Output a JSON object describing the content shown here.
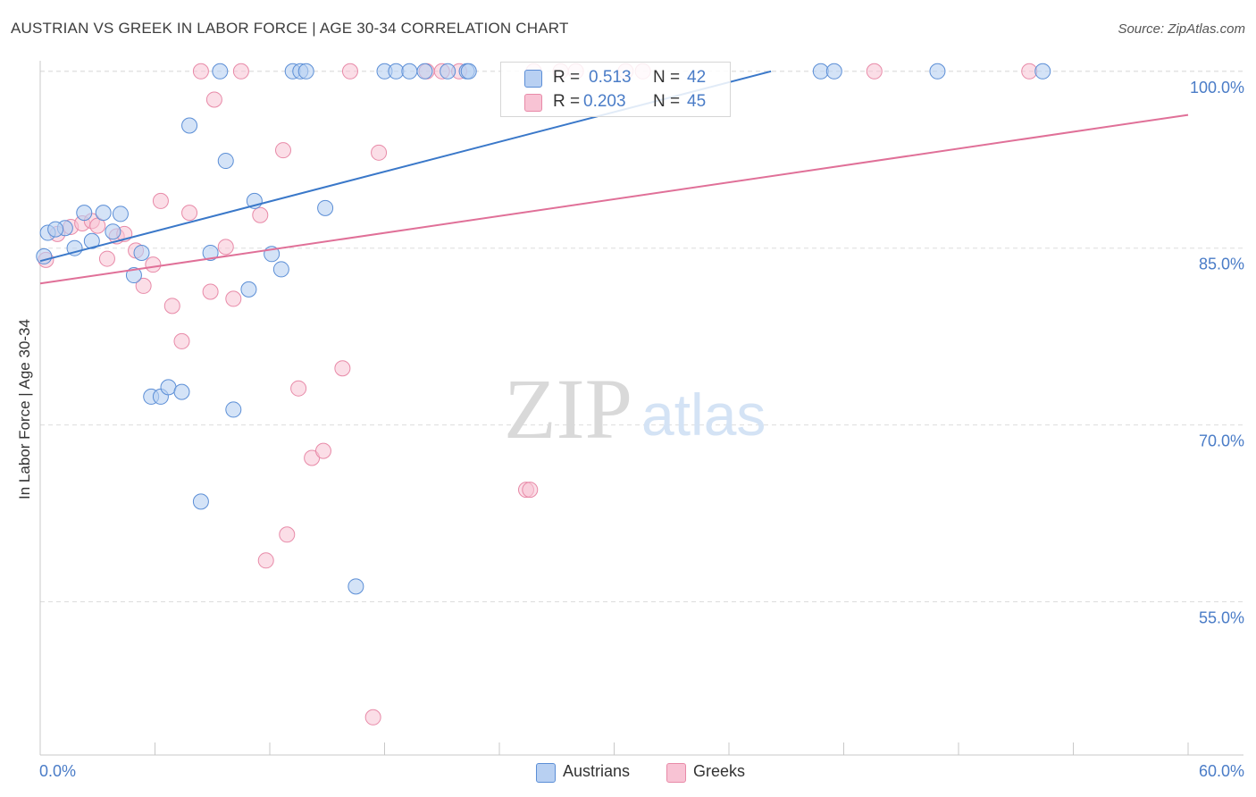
{
  "title": "AUSTRIAN VS GREEK IN LABOR FORCE | AGE 30-34 CORRELATION CHART",
  "source": "Source: ZipAtlas.com",
  "watermark": {
    "zip": "ZIP",
    "atlas": "atlas"
  },
  "colors": {
    "austrians_fill": "#b8d0f2",
    "austrians_stroke": "#5b8ed6",
    "austrians_line": "#3a78c9",
    "greeks_fill": "#f8c3d4",
    "greeks_stroke": "#e88aa8",
    "greeks_line": "#e07098",
    "axis_text": "#4a7cc7",
    "grid": "#dddddd"
  },
  "stats": {
    "austrians": {
      "r_label": "R =",
      "r_value": "0.513",
      "n_label": "N =",
      "n_value": "42"
    },
    "greeks": {
      "r_label": "R =",
      "r_value": "0.203",
      "n_label": "N =",
      "n_value": "45"
    }
  },
  "legend": {
    "austrians": "Austrians",
    "greeks": "Greeks"
  },
  "chart_data": {
    "type": "scatter",
    "title": "AUSTRIAN VS GREEK IN LABOR FORCE | AGE 30-34 CORRELATION CHART",
    "xlabel": "",
    "ylabel": "In Labor Force | Age 30-34",
    "xlim": [
      0,
      60
    ],
    "ylim": [
      42,
      101.5
    ],
    "x_tick_labels": [
      {
        "value": 0,
        "label": "0.0%"
      },
      {
        "value": 60,
        "label": "60.0%"
      }
    ],
    "y_tick_labels": [
      {
        "value": 100,
        "label": "100.0%"
      },
      {
        "value": 85,
        "label": "85.0%"
      },
      {
        "value": 70,
        "label": "70.0%"
      },
      {
        "value": 55,
        "label": "55.0%"
      }
    ],
    "series": [
      {
        "name": "Austrians",
        "trend": {
          "x": [
            0,
            38.2
          ],
          "y": [
            83.9,
            100.0
          ]
        },
        "points": [
          [
            0.4,
            86.3
          ],
          [
            1.3,
            86.7
          ],
          [
            1.8,
            85.0
          ],
          [
            2.3,
            88.0
          ],
          [
            2.7,
            85.6
          ],
          [
            3.3,
            88.0
          ],
          [
            3.8,
            86.4
          ],
          [
            4.2,
            87.9
          ],
          [
            4.9,
            82.7
          ],
          [
            5.3,
            84.6
          ],
          [
            5.8,
            72.4
          ],
          [
            6.3,
            72.4
          ],
          [
            6.7,
            73.2
          ],
          [
            7.4,
            72.8
          ],
          [
            7.8,
            95.4
          ],
          [
            8.4,
            63.5
          ],
          [
            8.9,
            84.6
          ],
          [
            9.4,
            100.0
          ],
          [
            9.7,
            92.4
          ],
          [
            10.1,
            71.3
          ],
          [
            10.9,
            81.5
          ],
          [
            11.2,
            89.0
          ],
          [
            12.1,
            84.5
          ],
          [
            12.6,
            83.2
          ],
          [
            13.2,
            100.0
          ],
          [
            13.6,
            100.0
          ],
          [
            13.9,
            100.0
          ],
          [
            14.9,
            88.4
          ],
          [
            16.5,
            56.3
          ],
          [
            18.0,
            100.0
          ],
          [
            18.6,
            100.0
          ],
          [
            19.3,
            100.0
          ],
          [
            20.1,
            100.0
          ],
          [
            21.3,
            100.0
          ],
          [
            22.3,
            100.0
          ],
          [
            22.4,
            100.0
          ],
          [
            40.8,
            100.0
          ],
          [
            41.5,
            100.0
          ],
          [
            46.9,
            100.0
          ],
          [
            52.4,
            100.0
          ],
          [
            0.2,
            84.3
          ],
          [
            0.8,
            86.6
          ]
        ]
      },
      {
        "name": "Greeks",
        "trend": {
          "x": [
            0,
            60
          ],
          "y": [
            82.0,
            96.3
          ]
        },
        "points": [
          [
            0.3,
            84.0
          ],
          [
            0.9,
            86.2
          ],
          [
            1.6,
            86.8
          ],
          [
            2.2,
            87.1
          ],
          [
            2.7,
            87.3
          ],
          [
            3.0,
            86.9
          ],
          [
            3.5,
            84.1
          ],
          [
            4.0,
            86.0
          ],
          [
            4.4,
            86.2
          ],
          [
            5.0,
            84.8
          ],
          [
            5.4,
            81.8
          ],
          [
            5.9,
            83.6
          ],
          [
            6.3,
            89.0
          ],
          [
            6.9,
            80.1
          ],
          [
            7.4,
            77.1
          ],
          [
            7.8,
            88.0
          ],
          [
            8.4,
            100.0
          ],
          [
            8.9,
            81.3
          ],
          [
            9.1,
            97.6
          ],
          [
            9.7,
            85.1
          ],
          [
            10.1,
            80.7
          ],
          [
            10.5,
            100.0
          ],
          [
            11.5,
            87.8
          ],
          [
            11.8,
            58.5
          ],
          [
            12.7,
            93.3
          ],
          [
            12.9,
            60.7
          ],
          [
            13.5,
            73.1
          ],
          [
            14.2,
            67.2
          ],
          [
            14.8,
            67.8
          ],
          [
            15.8,
            74.8
          ],
          [
            16.2,
            100.0
          ],
          [
            17.4,
            45.2
          ],
          [
            17.7,
            93.1
          ],
          [
            20.2,
            100.0
          ],
          [
            21.0,
            100.0
          ],
          [
            21.9,
            100.0
          ],
          [
            25.4,
            64.5
          ],
          [
            25.6,
            64.5
          ],
          [
            25.8,
            100.0
          ],
          [
            27.2,
            100.0
          ],
          [
            28.0,
            100.0
          ],
          [
            30.6,
            100.0
          ],
          [
            31.5,
            100.0
          ],
          [
            43.6,
            100.0
          ],
          [
            51.7,
            100.0
          ]
        ]
      }
    ],
    "grid": true
  }
}
